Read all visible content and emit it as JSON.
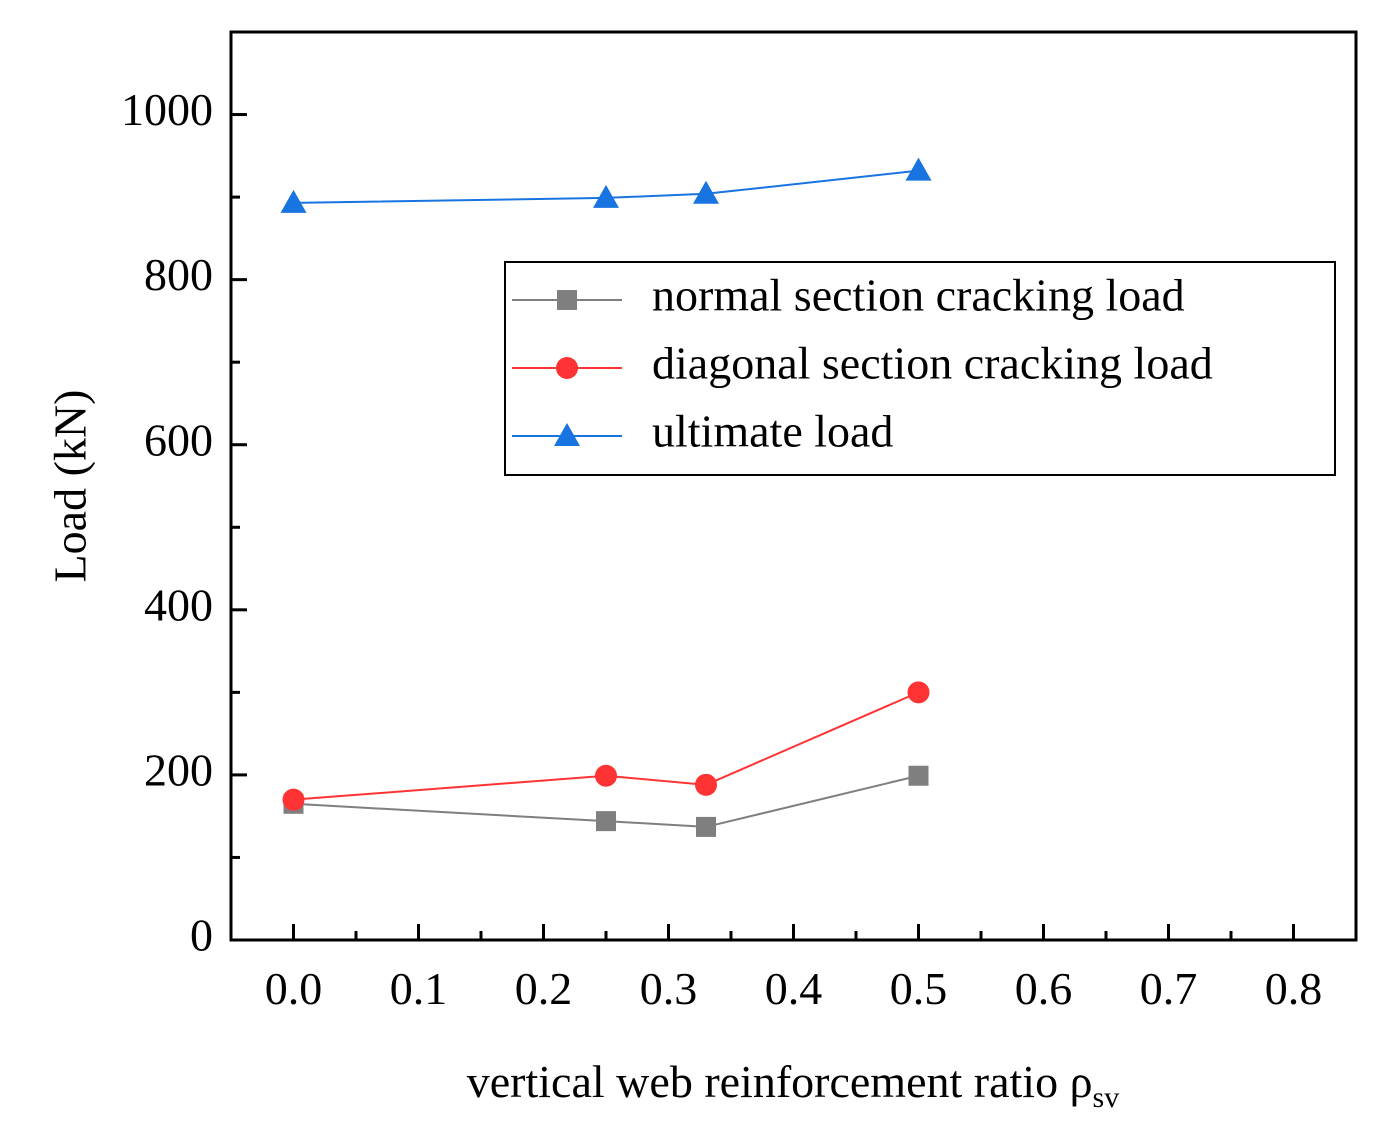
{
  "chart_data": {
    "type": "line",
    "title": "",
    "xlabel": "vertical web reinforcement ratio ρ",
    "xlabel_subscript": "sv",
    "ylabel": "Load (kN)",
    "xlim": [
      -0.05,
      0.85
    ],
    "ylim": [
      0,
      1100
    ],
    "x_ticks": [
      0.0,
      0.1,
      0.2,
      0.3,
      0.4,
      0.5,
      0.6,
      0.7,
      0.8
    ],
    "x_tick_labels": [
      "0.0",
      "0.1",
      "0.2",
      "0.3",
      "0.4",
      "0.5",
      "0.6",
      "0.7",
      "0.8"
    ],
    "x_minor_ticks": [
      0.05,
      0.15,
      0.25,
      0.35,
      0.45,
      0.55,
      0.65,
      0.75
    ],
    "y_ticks": [
      0,
      200,
      400,
      600,
      800,
      1000
    ],
    "y_tick_labels": [
      "0",
      "200",
      "400",
      "600",
      "800",
      "1000"
    ],
    "y_minor_ticks": [
      100,
      300,
      500,
      700,
      900
    ],
    "grid": false,
    "legend_position": "right, upper-middle",
    "series": [
      {
        "name": "normal section cracking load",
        "color": "#7f7f7f",
        "marker": "square",
        "x": [
          0.0,
          0.25,
          0.33,
          0.5
        ],
        "y": [
          165,
          144,
          137,
          199
        ]
      },
      {
        "name": "diagonal section cracking load",
        "color": "#ff3333",
        "marker": "circle",
        "x": [
          0.0,
          0.25,
          0.33,
          0.5
        ],
        "y": [
          170,
          199,
          188,
          300
        ]
      },
      {
        "name": "ultimate load",
        "color": "#1874e0",
        "marker": "triangle",
        "x": [
          0.0,
          0.25,
          0.33,
          0.5
        ],
        "y": [
          893,
          899,
          904,
          932
        ]
      }
    ]
  }
}
